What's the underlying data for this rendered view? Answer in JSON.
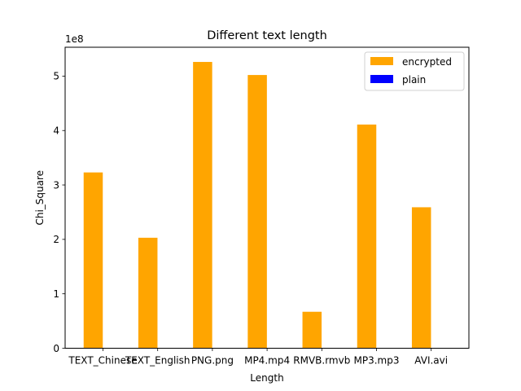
{
  "chart_data": {
    "type": "bar",
    "title": "Different text length",
    "xlabel": "Length",
    "ylabel": "Chi_Square",
    "y_offset_label": "1e8",
    "categories": [
      "TEXT_Chinese",
      "TEXT_English",
      "PNG.png",
      "MP4.mp4",
      "RMVB.rmvb",
      "MP3.mp3",
      "AVI.avi"
    ],
    "series": [
      {
        "name": "encrypted",
        "color": "#ffa500",
        "values": [
          3.23,
          2.03,
          5.26,
          5.02,
          0.67,
          4.11,
          2.59
        ]
      },
      {
        "name": "plain",
        "color": "#0000ff",
        "values": [
          0,
          0,
          0,
          0,
          0,
          0,
          0
        ]
      }
    ],
    "ylim": [
      0,
      5.53
    ],
    "yticks": [
      0,
      1,
      2,
      3,
      4,
      5
    ],
    "grid": false,
    "legend_position": "top-right"
  }
}
